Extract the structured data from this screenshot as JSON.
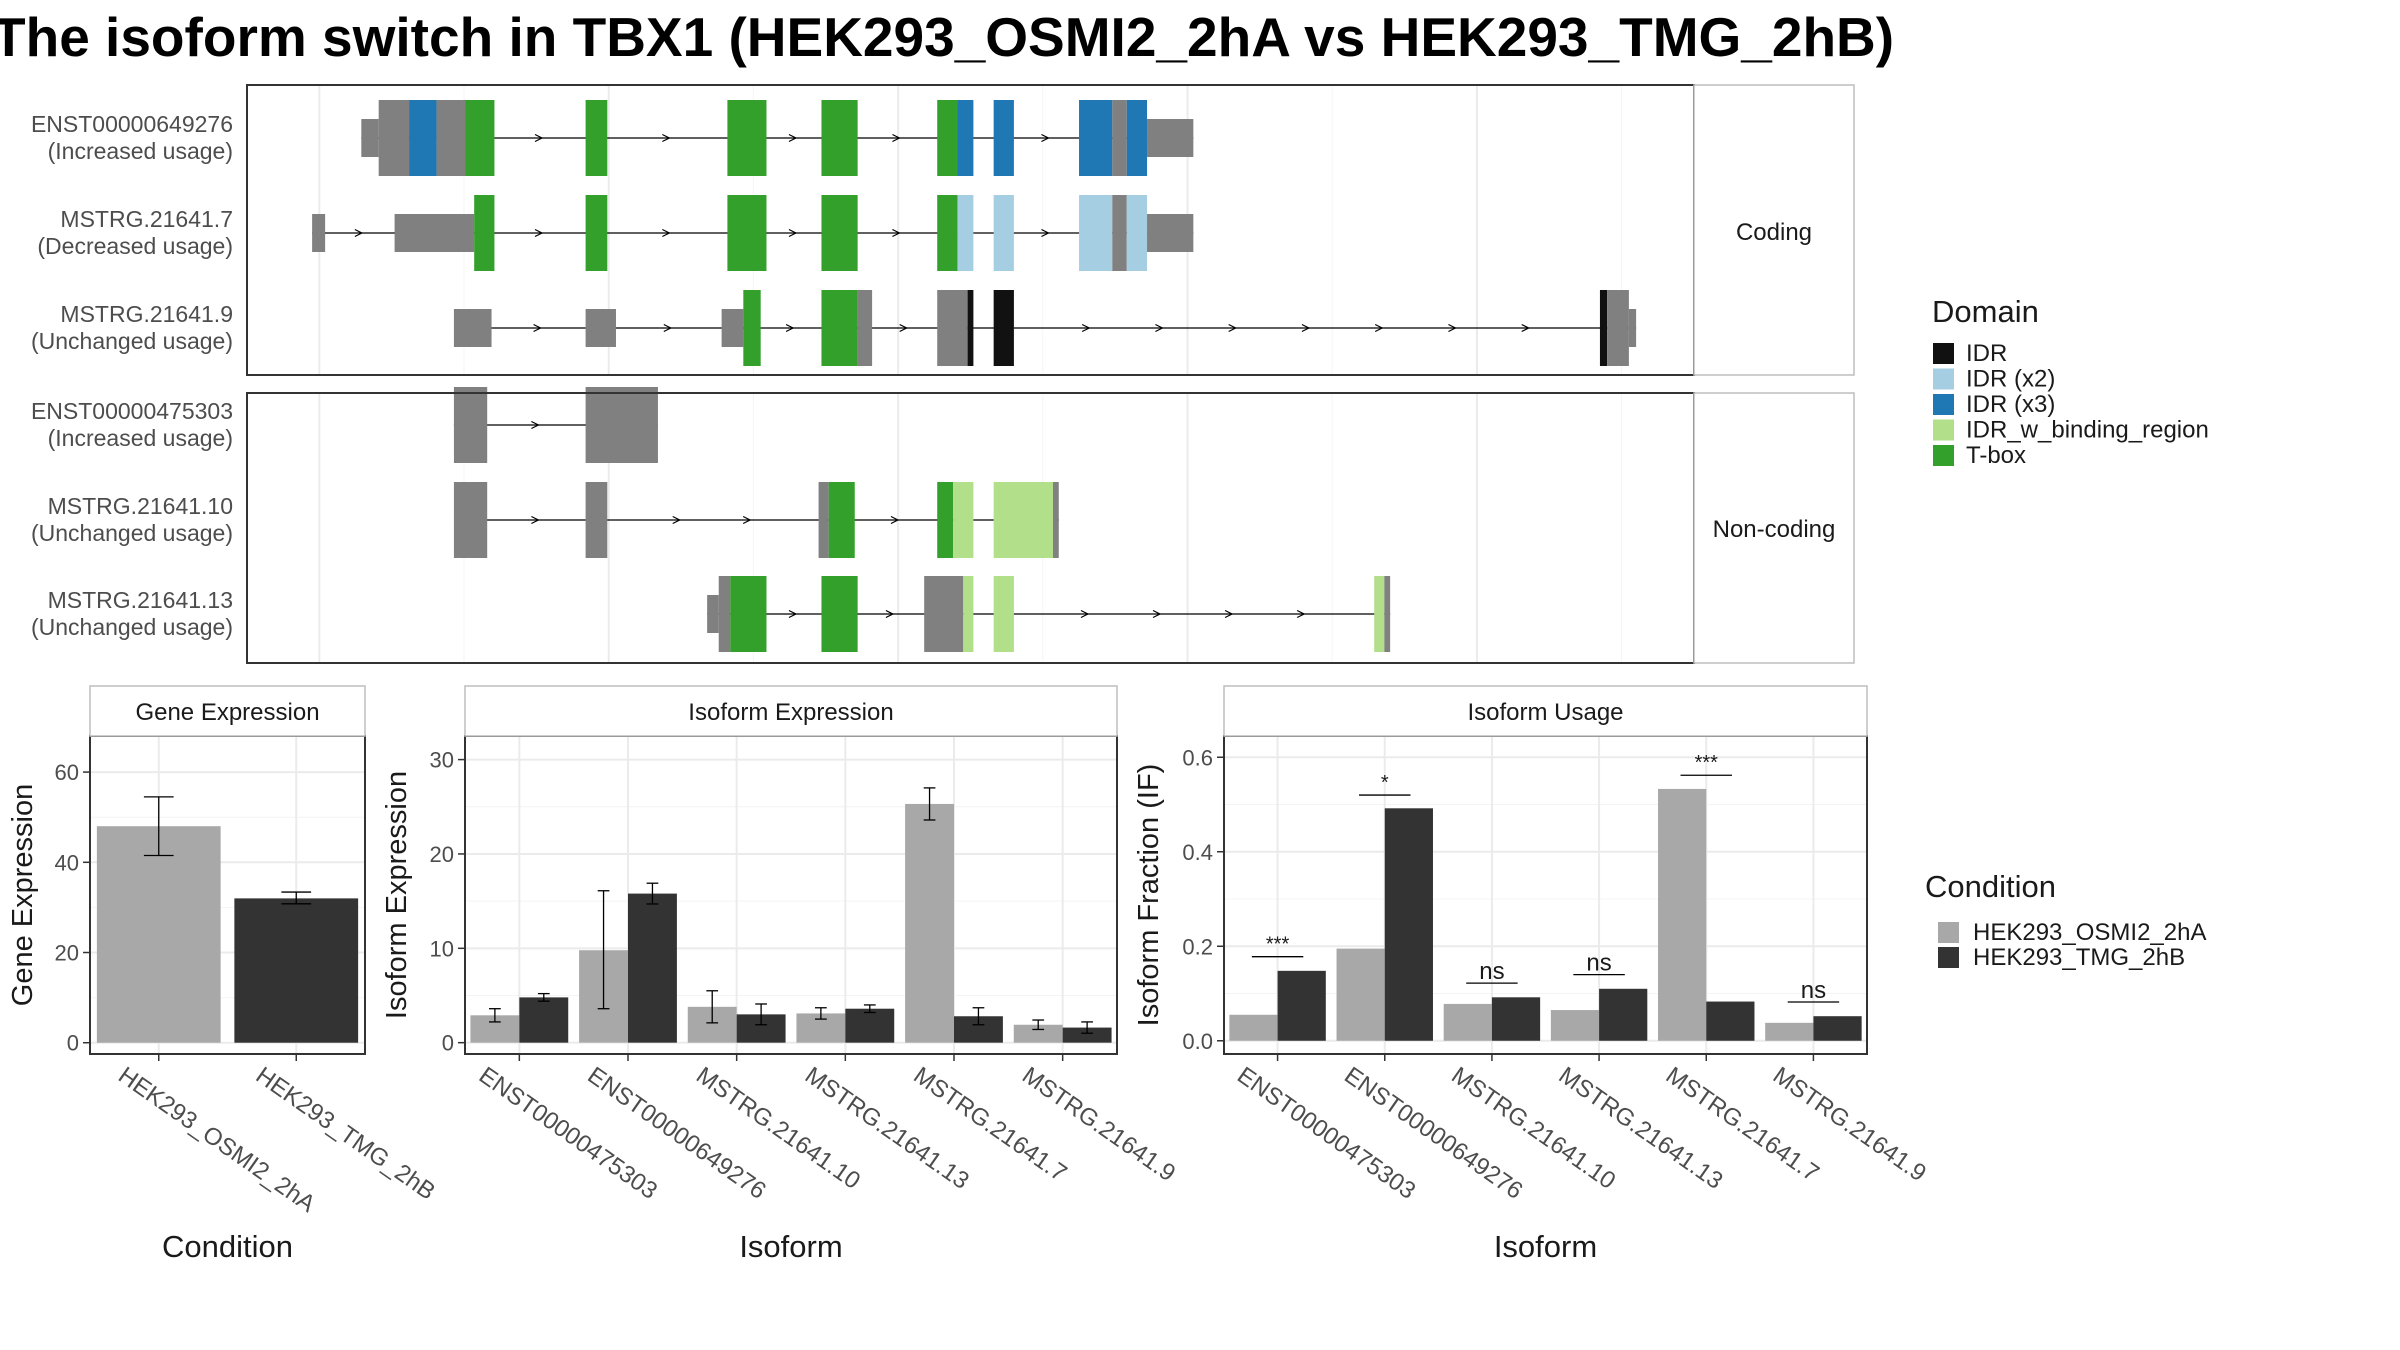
{
  "title": "The isoform switch in TBX1 (HEK293_OSMI2_2hA vs HEK293_TMG_2hB)",
  "colors": {
    "IDR": "#111111",
    "IDR (x2)": "#a6cee3",
    "IDR (x3)": "#1f78b4",
    "IDR_w_binding_region": "#b2df8a",
    "T-box": "#33a02c",
    "none": "#808080",
    "cond_A": "#a8a8a8",
    "cond_B": "#333333"
  },
  "panels": {
    "coding_label": "Coding",
    "noncoding_label": "Non-coding"
  },
  "domain_legend": {
    "title": "Domain",
    "items": [
      "IDR",
      "IDR (x2)",
      "IDR (x3)",
      "IDR_w_binding_region",
      "T-box"
    ]
  },
  "condition_legend": {
    "title": "Condition",
    "items": [
      "HEK293_OSMI2_2hA",
      "HEK293_TMG_2hB"
    ]
  },
  "chart_data": [
    {
      "type": "gene-structure",
      "name": "transcript structures",
      "xlim": [
        0,
        100
      ],
      "groups": [
        {
          "label": "Coding",
          "transcripts": [
            {
              "id": "ENST00000649276",
              "usage": "(Increased usage)",
              "strand_arrows": true,
              "exons": [
                {
                  "s": 7.9,
                  "e": 9.1,
                  "h": "utr"
                },
                {
                  "s": 9.1,
                  "e": 11.2,
                  "h": "cds",
                  "d": "none"
                },
                {
                  "s": 11.2,
                  "e": 13.1,
                  "h": "cds",
                  "d": "IDR (x3)"
                },
                {
                  "s": 13.1,
                  "e": 15.1,
                  "h": "cds",
                  "d": "none"
                },
                {
                  "s": 15.1,
                  "e": 17.1,
                  "h": "cds",
                  "d": "T-box"
                },
                {
                  "s": 23.4,
                  "e": 24.9,
                  "h": "cds",
                  "d": "T-box"
                },
                {
                  "s": 33.2,
                  "e": 35.9,
                  "h": "cds",
                  "d": "T-box"
                },
                {
                  "s": 39.7,
                  "e": 42.2,
                  "h": "cds",
                  "d": "T-box"
                },
                {
                  "s": 47.7,
                  "e": 49.1,
                  "h": "cds",
                  "d": "T-box"
                },
                {
                  "s": 49.1,
                  "e": 50.2,
                  "h": "cds",
                  "d": "IDR (x3)"
                },
                {
                  "s": 51.6,
                  "e": 53.0,
                  "h": "cds",
                  "d": "IDR (x3)"
                },
                {
                  "s": 57.5,
                  "e": 59.8,
                  "h": "cds",
                  "d": "IDR (x3)"
                },
                {
                  "s": 59.8,
                  "e": 60.8,
                  "h": "cds",
                  "d": "none"
                },
                {
                  "s": 60.8,
                  "e": 62.2,
                  "h": "cds",
                  "d": "IDR (x3)"
                },
                {
                  "s": 62.2,
                  "e": 65.4,
                  "h": "utr"
                }
              ]
            },
            {
              "id": "MSTRG.21641.7",
              "usage": "(Decreased usage)",
              "strand_arrows": true,
              "exons": [
                {
                  "s": 4.5,
                  "e": 5.4,
                  "h": "utr"
                },
                {
                  "s": 10.2,
                  "e": 15.7,
                  "h": "utr"
                },
                {
                  "s": 15.7,
                  "e": 17.1,
                  "h": "cds",
                  "d": "T-box"
                },
                {
                  "s": 23.4,
                  "e": 24.9,
                  "h": "cds",
                  "d": "T-box"
                },
                {
                  "s": 33.2,
                  "e": 35.9,
                  "h": "cds",
                  "d": "T-box"
                },
                {
                  "s": 39.7,
                  "e": 42.2,
                  "h": "cds",
                  "d": "T-box"
                },
                {
                  "s": 47.7,
                  "e": 49.1,
                  "h": "cds",
                  "d": "T-box"
                },
                {
                  "s": 49.1,
                  "e": 50.2,
                  "h": "cds",
                  "d": "IDR (x2)"
                },
                {
                  "s": 51.6,
                  "e": 53.0,
                  "h": "cds",
                  "d": "IDR (x2)"
                },
                {
                  "s": 57.5,
                  "e": 59.8,
                  "h": "cds",
                  "d": "IDR (x2)"
                },
                {
                  "s": 59.8,
                  "e": 60.8,
                  "h": "cds",
                  "d": "none"
                },
                {
                  "s": 60.8,
                  "e": 62.2,
                  "h": "cds",
                  "d": "IDR (x2)"
                },
                {
                  "s": 62.2,
                  "e": 65.4,
                  "h": "utr"
                }
              ]
            },
            {
              "id": "MSTRG.21641.9",
              "usage": "(Unchanged usage)",
              "strand_arrows": true,
              "exons": [
                {
                  "s": 14.3,
                  "e": 16.9,
                  "h": "utr"
                },
                {
                  "s": 23.4,
                  "e": 25.5,
                  "h": "utr"
                },
                {
                  "s": 32.8,
                  "e": 34.3,
                  "h": "utr"
                },
                {
                  "s": 34.3,
                  "e": 35.5,
                  "h": "cds",
                  "d": "T-box"
                },
                {
                  "s": 39.7,
                  "e": 42.2,
                  "h": "cds",
                  "d": "T-box"
                },
                {
                  "s": 42.2,
                  "e": 43.2,
                  "h": "cds",
                  "d": "none"
                },
                {
                  "s": 47.7,
                  "e": 49.8,
                  "h": "cds",
                  "d": "none"
                },
                {
                  "s": 49.8,
                  "e": 50.2,
                  "h": "cds",
                  "d": "IDR"
                },
                {
                  "s": 51.6,
                  "e": 53.0,
                  "h": "cds",
                  "d": "IDR"
                },
                {
                  "s": 93.5,
                  "e": 94.0,
                  "h": "cds",
                  "d": "IDR"
                },
                {
                  "s": 94.0,
                  "e": 95.5,
                  "h": "cds",
                  "d": "none"
                },
                {
                  "s": 95.5,
                  "e": 96.0,
                  "h": "utr"
                }
              ]
            }
          ]
        },
        {
          "label": "Non-coding",
          "transcripts": [
            {
              "id": "ENST00000475303",
              "usage": "(Increased usage)",
              "strand_arrows": true,
              "exons": [
                {
                  "s": 14.3,
                  "e": 16.6,
                  "h": "cds",
                  "d": "none"
                },
                {
                  "s": 23.4,
                  "e": 28.4,
                  "h": "cds",
                  "d": "none"
                }
              ]
            },
            {
              "id": "MSTRG.21641.10",
              "usage": "(Unchanged usage)",
              "strand_arrows": true,
              "exons": [
                {
                  "s": 14.3,
                  "e": 16.6,
                  "h": "cds",
                  "d": "none"
                },
                {
                  "s": 23.4,
                  "e": 24.9,
                  "h": "cds",
                  "d": "none"
                },
                {
                  "s": 39.5,
                  "e": 40.2,
                  "h": "cds",
                  "d": "none"
                },
                {
                  "s": 40.2,
                  "e": 42.0,
                  "h": "cds",
                  "d": "T-box"
                },
                {
                  "s": 47.7,
                  "e": 48.8,
                  "h": "cds",
                  "d": "T-box"
                },
                {
                  "s": 48.8,
                  "e": 50.2,
                  "h": "cds",
                  "d": "IDR_w_binding_region"
                },
                {
                  "s": 51.6,
                  "e": 55.7,
                  "h": "cds",
                  "d": "IDR_w_binding_region"
                },
                {
                  "s": 55.7,
                  "e": 56.1,
                  "h": "cds",
                  "d": "none"
                }
              ]
            },
            {
              "id": "MSTRG.21641.13",
              "usage": "(Unchanged usage)",
              "strand_arrows": true,
              "exons": [
                {
                  "s": 31.8,
                  "e": 32.6,
                  "h": "utr"
                },
                {
                  "s": 32.6,
                  "e": 33.4,
                  "h": "cds",
                  "d": "none"
                },
                {
                  "s": 33.4,
                  "e": 35.9,
                  "h": "cds",
                  "d": "T-box"
                },
                {
                  "s": 39.7,
                  "e": 42.2,
                  "h": "cds",
                  "d": "T-box"
                },
                {
                  "s": 46.8,
                  "e": 49.5,
                  "h": "cds",
                  "d": "none"
                },
                {
                  "s": 49.5,
                  "e": 50.2,
                  "h": "cds",
                  "d": "IDR_w_binding_region"
                },
                {
                  "s": 51.6,
                  "e": 53.0,
                  "h": "cds",
                  "d": "IDR_w_binding_region"
                },
                {
                  "s": 77.9,
                  "e": 78.6,
                  "h": "cds",
                  "d": "IDR_w_binding_region"
                },
                {
                  "s": 78.6,
                  "e": 79.0,
                  "h": "cds",
                  "d": "none"
                }
              ]
            }
          ]
        }
      ]
    },
    {
      "type": "bar",
      "title": "Gene Expression",
      "xlabel": "Condition",
      "ylabel": "Gene Expression",
      "ylim": [
        -2.5,
        68
      ],
      "yticks": [
        0,
        20,
        40,
        60
      ],
      "categories": [
        "HEK293_OSMI2_2hA",
        "HEK293_TMG_2hB"
      ],
      "values": [
        48,
        32
      ],
      "errors": [
        [
          41.5,
          54.5
        ],
        [
          30.8,
          33.4
        ]
      ],
      "fills": [
        "cond_A",
        "cond_B"
      ]
    },
    {
      "type": "bar",
      "title": "Isoform Expression",
      "xlabel": "Isoform",
      "ylabel": "Isoform Expression",
      "ylim": [
        -1.2,
        32.5
      ],
      "yticks": [
        0,
        10,
        20,
        30
      ],
      "categories": [
        "ENST00000475303",
        "ENST00000649276",
        "MSTRG.21641.10",
        "MSTRG.21641.13",
        "MSTRG.21641.7",
        "MSTRG.21641.9"
      ],
      "series": [
        {
          "name": "HEK293_OSMI2_2hA",
          "values": [
            2.9,
            9.8,
            3.8,
            3.1,
            25.3,
            1.9
          ],
          "errors": [
            [
              2.2,
              3.6
            ],
            [
              3.6,
              16.1
            ],
            [
              2.1,
              5.5
            ],
            [
              2.5,
              3.7
            ],
            [
              23.6,
              27.0
            ],
            [
              1.4,
              2.4
            ]
          ]
        },
        {
          "name": "HEK293_TMG_2hB",
          "values": [
            4.8,
            15.8,
            3.0,
            3.6,
            2.8,
            1.6
          ],
          "errors": [
            [
              4.4,
              5.2
            ],
            [
              14.7,
              16.9
            ],
            [
              1.9,
              4.1
            ],
            [
              3.2,
              4.0
            ],
            [
              1.9,
              3.7
            ],
            [
              1.0,
              2.2
            ]
          ]
        }
      ]
    },
    {
      "type": "bar",
      "title": "Isoform Usage",
      "xlabel": "Isoform",
      "ylabel": "Isoform Fraction (IF)",
      "ylim": [
        -0.028,
        0.645
      ],
      "yticks": [
        0.0,
        0.2,
        0.4,
        0.6
      ],
      "categories": [
        "ENST00000475303",
        "ENST00000649276",
        "MSTRG.21641.10",
        "MSTRG.21641.13",
        "MSTRG.21641.7",
        "MSTRG.21641.9"
      ],
      "series": [
        {
          "name": "HEK293_OSMI2_2hA",
          "values": [
            0.055,
            0.195,
            0.078,
            0.065,
            0.533,
            0.038
          ]
        },
        {
          "name": "HEK293_TMG_2hB",
          "values": [
            0.148,
            0.492,
            0.092,
            0.11,
            0.083,
            0.052
          ]
        }
      ],
      "significance": [
        "***",
        "*",
        "ns",
        "ns",
        "***",
        "ns"
      ],
      "sig_line_values": [
        0.178,
        0.52,
        0.122,
        0.14,
        0.562,
        0.082
      ]
    }
  ]
}
